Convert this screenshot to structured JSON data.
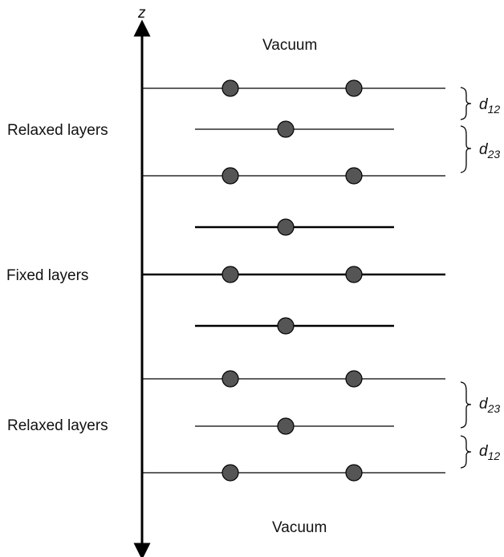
{
  "axis": {
    "label": "z"
  },
  "labels": {
    "vacuum_top": "Vacuum",
    "vacuum_bottom": "Vacuum",
    "relaxed_top": "Relaxed layers",
    "fixed": "Fixed layers",
    "relaxed_bottom": "Relaxed layers"
  },
  "spacings": [
    {
      "var": "d",
      "sub": "12"
    },
    {
      "var": "d",
      "sub": "23"
    },
    {
      "var": "d",
      "sub": "23"
    },
    {
      "var": "d",
      "sub": "12"
    }
  ],
  "layers": [
    {
      "type": "relaxed",
      "atoms": 2
    },
    {
      "type": "relaxed",
      "atoms": 1
    },
    {
      "type": "relaxed",
      "atoms": 2
    },
    {
      "type": "fixed",
      "atoms": 1
    },
    {
      "type": "fixed",
      "atoms": 2
    },
    {
      "type": "fixed",
      "atoms": 1
    },
    {
      "type": "relaxed",
      "atoms": 2
    },
    {
      "type": "relaxed",
      "atoms": 1
    },
    {
      "type": "relaxed",
      "atoms": 2
    }
  ],
  "colors": {
    "atom_fill": "#555555",
    "line": "#000000"
  }
}
